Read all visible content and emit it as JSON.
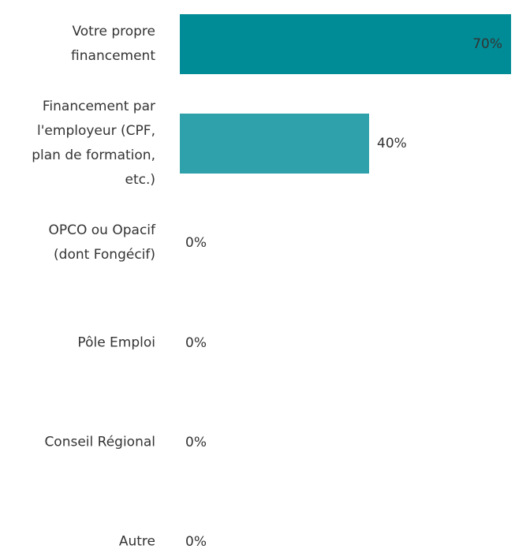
{
  "chart_data": {
    "type": "bar",
    "orientation": "horizontal",
    "categories": [
      "Votre propre\nfinancement",
      "Financement par\nl'employeur (CPF,\nplan de formation,\netc.)",
      "OPCO ou Opacif\n(dont Fongécif)",
      "Pôle Emploi",
      "Conseil Régional",
      "Autre"
    ],
    "values": [
      70,
      40,
      0,
      0,
      0,
      0
    ],
    "value_labels": [
      "70%",
      "40%",
      "0%",
      "0%",
      "0%",
      "0%"
    ],
    "colors": [
      "#008c96",
      "#2ea1aa",
      "#2ea1aa",
      "#2ea1aa",
      "#2ea1aa",
      "#2ea1aa"
    ]
  }
}
